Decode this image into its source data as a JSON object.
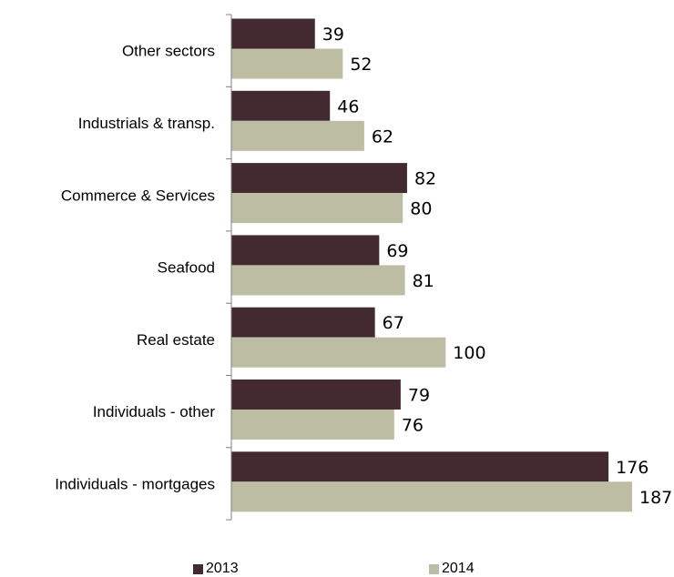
{
  "chart_data": {
    "type": "bar",
    "orientation": "horizontal",
    "categories": [
      "Other sectors",
      "Industrials & transp.",
      "Commerce & Services",
      "Seafood",
      "Real estate",
      "Individuals - other",
      "Individuals - mortgages"
    ],
    "series": [
      {
        "name": "2013",
        "color": "#432a30",
        "values": [
          39,
          46,
          82,
          69,
          67,
          79,
          176
        ]
      },
      {
        "name": "2014",
        "color": "#bdbda4",
        "values": [
          52,
          62,
          80,
          81,
          100,
          76,
          187
        ]
      }
    ],
    "xlim": [
      0,
      187
    ],
    "grid": false,
    "legend_position": "bottom",
    "data_labels": true
  }
}
